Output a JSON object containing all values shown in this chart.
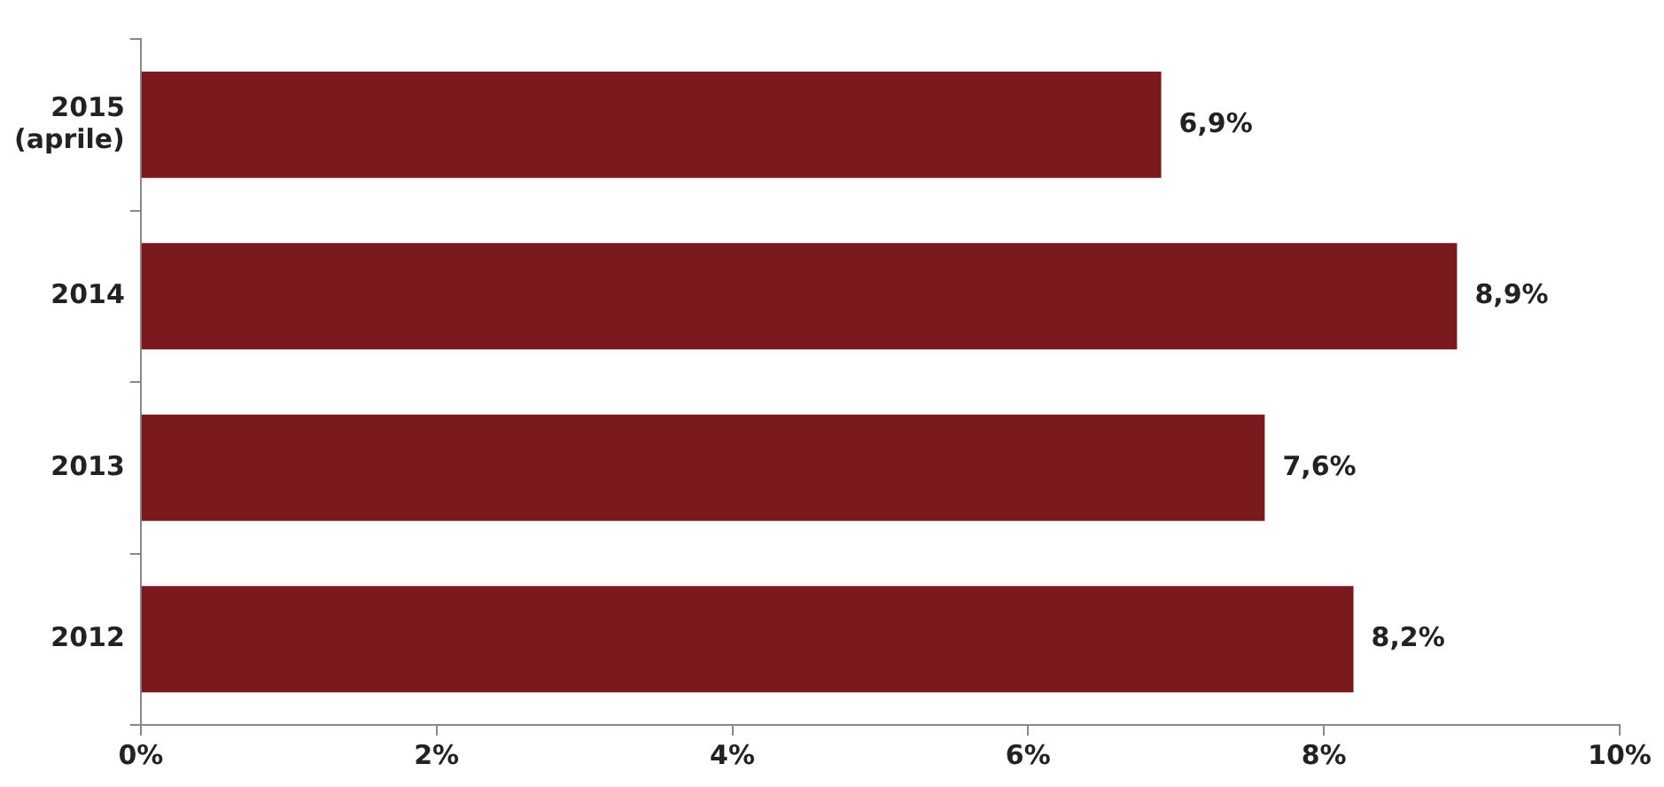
{
  "chart_data": {
    "type": "bar",
    "orientation": "horizontal",
    "categories": [
      "2015\n(aprile)",
      "2014",
      "2013",
      "2012"
    ],
    "values": [
      6.9,
      8.9,
      7.6,
      8.2
    ],
    "value_labels": [
      "6,9%",
      "8,9%",
      "7,6%",
      "8,2%"
    ],
    "color": "#7b1a1e",
    "xlim": [
      0,
      10
    ],
    "xticks": [
      {
        "value": 0,
        "label": "0%"
      },
      {
        "value": 2,
        "label": "2%"
      },
      {
        "value": 4,
        "label": "4%"
      },
      {
        "value": 6,
        "label": "6%"
      },
      {
        "value": 8,
        "label": "8%"
      },
      {
        "value": 10,
        "label": "10%"
      }
    ],
    "grid": false,
    "legend": false
  }
}
